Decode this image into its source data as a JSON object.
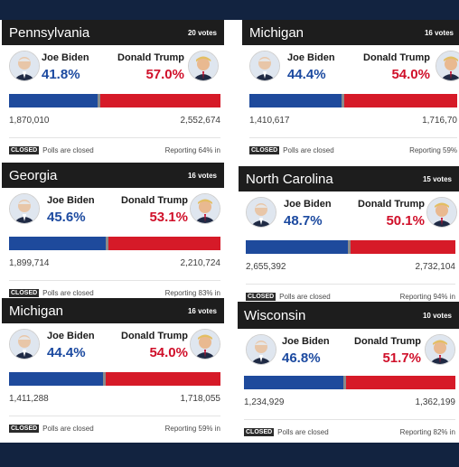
{
  "cards": [
    {
      "state": "Pennsylvania",
      "votes": "20 votes",
      "biden": {
        "name": "Joe Biden",
        "pct": "41.8%",
        "count": "1,870,010"
      },
      "trump": {
        "name": "Donald Trump",
        "pct": "57.0%",
        "count": "2,552,674"
      },
      "status_badge": "CLOSED",
      "status_text": "Polls are closed",
      "reporting": "Reporting 64% in",
      "biden_share": 0.418
    },
    {
      "state": "Michigan",
      "votes": "16 votes",
      "biden": {
        "name": "Joe Biden",
        "pct": "44.4%",
        "count": "1,410,617"
      },
      "trump": {
        "name": "Donald Trump",
        "pct": "54.0%",
        "count": "1,716,70"
      },
      "status_badge": "CLOSED",
      "status_text": "Polls are closed",
      "reporting": "Reporting 59%",
      "biden_share": 0.444
    },
    {
      "state": "Georgia",
      "votes": "16 votes",
      "biden": {
        "name": "Joe Biden",
        "pct": "45.6%",
        "count": "1,899,714"
      },
      "trump": {
        "name": "Donald Trump",
        "pct": "53.1%",
        "count": "2,210,724"
      },
      "status_badge": "CLOSED",
      "status_text": "Polls are closed",
      "reporting": "Reporting 83% in",
      "biden_share": 0.456
    },
    {
      "state": "North Carolina",
      "votes": "15 votes",
      "biden": {
        "name": "Joe Biden",
        "pct": "48.7%",
        "count": "2,655,392"
      },
      "trump": {
        "name": "Donald Trump",
        "pct": "50.1%",
        "count": "2,732,104"
      },
      "status_badge": "CLOSED",
      "status_text": "Polls are closed",
      "reporting": "Reporting 94% in",
      "biden_share": 0.487
    },
    {
      "state": "Michigan",
      "votes": "16 votes",
      "biden": {
        "name": "Joe Biden",
        "pct": "44.4%",
        "count": "1,411,288"
      },
      "trump": {
        "name": "Donald Trump",
        "pct": "54.0%",
        "count": "1,718,055"
      },
      "status_badge": "CLOSED",
      "status_text": "Polls are closed",
      "reporting": "Reporting 59% in",
      "biden_share": 0.444
    },
    {
      "state": "Wisconsin",
      "votes": "10 votes",
      "biden": {
        "name": "Joe Biden",
        "pct": "46.8%",
        "count": "1,234,929"
      },
      "trump": {
        "name": "Donald Trump",
        "pct": "51.7%",
        "count": "1,362,199"
      },
      "status_badge": "CLOSED",
      "status_text": "Polls are closed",
      "reporting": "Reporting 82% in",
      "biden_share": 0.468
    }
  ],
  "icons": {
    "biden_avatar": "biden-portrait-icon",
    "trump_avatar": "trump-portrait-icon"
  },
  "colors": {
    "biden": "#1c4aa0",
    "trump": "#d0102a",
    "header": "#1d1d1d",
    "page_bg": "#122340"
  }
}
